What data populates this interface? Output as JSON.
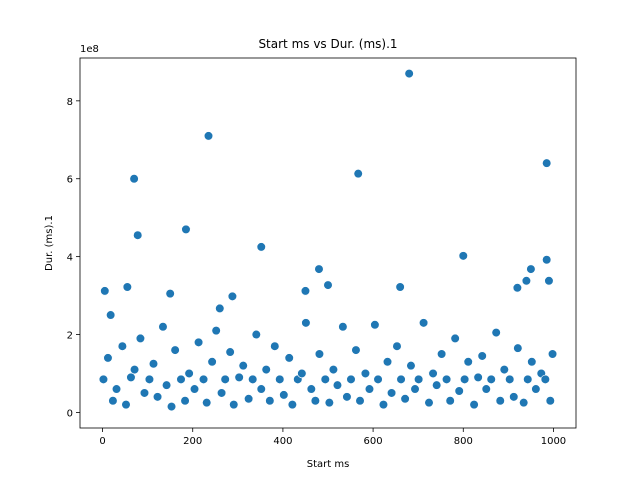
{
  "chart_data": {
    "type": "scatter",
    "title": "Start ms vs Dur. (ms).1",
    "x_label": "Start ms",
    "y_label": "Dur. (ms).1",
    "y_offset_label": "1e8",
    "color": "#1f77b4",
    "x": [
      5,
      18,
      55,
      70,
      78,
      150,
      185,
      235,
      288,
      352,
      480,
      500,
      567,
      660,
      680,
      800,
      985,
      985,
      990,
      950,
      940,
      920,
      450,
      260,
      2,
      12,
      23,
      31,
      44,
      52,
      63,
      71,
      84,
      93,
      104,
      113,
      122,
      134,
      142,
      153,
      161,
      174,
      183,
      192,
      204,
      213,
      224,
      231,
      243,
      252,
      264,
      272,
      283,
      291,
      303,
      312,
      324,
      333,
      341,
      352,
      363,
      371,
      382,
      393,
      402,
      414,
      421,
      433,
      442,
      451,
      463,
      472,
      481,
      494,
      503,
      512,
      521,
      533,
      542,
      551,
      562,
      571,
      583,
      592,
      604,
      611,
      623,
      632,
      641,
      653,
      662,
      671,
      684,
      693,
      701,
      712,
      724,
      733,
      741,
      752,
      763,
      771,
      782,
      791,
      803,
      811,
      824,
      833,
      842,
      851,
      862,
      873,
      882,
      891,
      903,
      912,
      921,
      934,
      943,
      952,
      961,
      973,
      982,
      993,
      998
    ],
    "values": [
      3.12,
      2.5,
      3.22,
      6.0,
      4.55,
      3.05,
      4.7,
      7.1,
      2.98,
      4.25,
      3.68,
      3.27,
      6.13,
      3.22,
      8.7,
      4.02,
      6.4,
      3.92,
      3.38,
      3.68,
      3.38,
      3.2,
      3.12,
      2.67,
      0.85,
      1.4,
      0.3,
      0.6,
      1.7,
      0.2,
      0.9,
      1.1,
      1.9,
      0.5,
      0.85,
      1.25,
      0.4,
      2.2,
      0.7,
      0.15,
      1.6,
      0.85,
      0.3,
      1.0,
      0.6,
      1.8,
      0.85,
      0.25,
      1.3,
      2.1,
      0.5,
      0.85,
      1.55,
      0.2,
      0.9,
      1.2,
      0.35,
      0.85,
      2.0,
      0.6,
      1.1,
      0.3,
      1.7,
      0.85,
      0.45,
      1.4,
      0.2,
      0.85,
      1.0,
      2.3,
      0.6,
      0.3,
      1.5,
      0.85,
      0.25,
      1.1,
      0.7,
      2.2,
      0.4,
      0.85,
      1.6,
      0.3,
      1.0,
      0.6,
      2.25,
      0.85,
      0.2,
      1.3,
      0.5,
      1.7,
      0.85,
      0.35,
      1.2,
      0.6,
      0.85,
      2.3,
      0.25,
      1.0,
      0.7,
      1.5,
      0.85,
      0.3,
      1.9,
      0.55,
      0.85,
      1.3,
      0.2,
      0.9,
      1.45,
      0.6,
      0.85,
      2.05,
      0.3,
      1.1,
      0.85,
      0.4,
      1.65,
      0.25,
      0.85,
      1.3,
      0.6,
      1.0,
      0.85,
      0.3,
      1.5
    ],
    "xlim": [
      -50,
      1050
    ],
    "ylim": [
      -0.4,
      9.1
    ],
    "xticks": [
      0,
      200,
      400,
      600,
      800,
      1000
    ],
    "yticks": [
      0,
      2,
      4,
      6,
      8
    ],
    "grid": false
  }
}
